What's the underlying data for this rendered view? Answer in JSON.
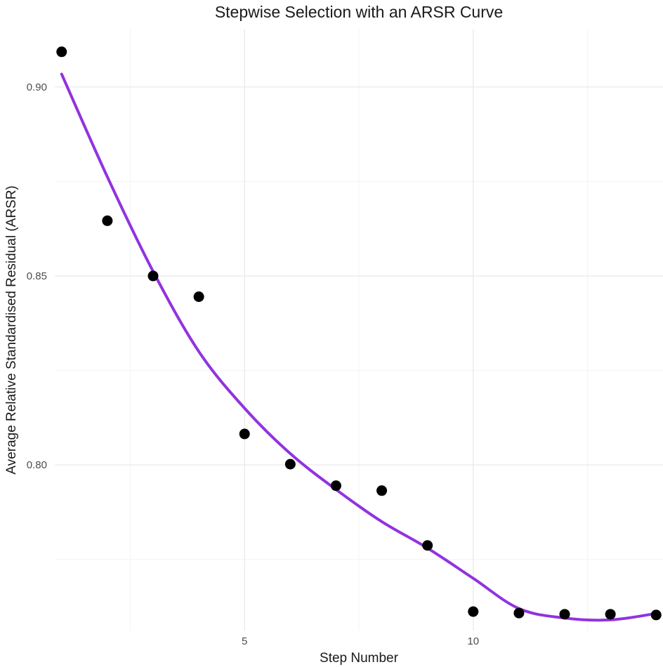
{
  "chart_data": {
    "type": "scatter",
    "title": "Stepwise Selection with an ARSR Curve",
    "xlabel": "Step Number",
    "ylabel": "Average Relative Standardised Residual (ARSR)",
    "xlim": [
      0.85,
      14.15
    ],
    "ylim": [
      0.7562,
      0.9152
    ],
    "x_ticks": [
      5,
      10
    ],
    "x_tick_labels": [
      "5",
      "10"
    ],
    "y_ticks": [
      0.8,
      0.85,
      0.9
    ],
    "y_tick_labels": [
      "0.80",
      "0.85",
      "0.90"
    ],
    "grid": true,
    "legend": "none",
    "series": [
      {
        "kind": "points",
        "color": "#000000",
        "x": [
          1,
          2,
          3,
          4,
          5,
          6,
          7,
          8,
          9,
          10,
          11,
          12,
          13,
          14
        ],
        "y": [
          0.9093,
          0.8646,
          0.85,
          0.8445,
          0.8082,
          0.8002,
          0.7945,
          0.7932,
          0.7787,
          0.7612,
          0.7608,
          0.7605,
          0.7605,
          0.7603
        ]
      },
      {
        "kind": "smooth",
        "color": "#9133e0",
        "x": [
          1,
          2,
          3,
          4,
          5,
          6,
          7,
          8,
          9,
          10,
          11,
          12,
          13,
          14
        ],
        "y": [
          0.9034,
          0.8762,
          0.8512,
          0.83,
          0.815,
          0.803,
          0.7935,
          0.785,
          0.778,
          0.77,
          0.762,
          0.7595,
          0.759,
          0.7607
        ]
      }
    ]
  }
}
